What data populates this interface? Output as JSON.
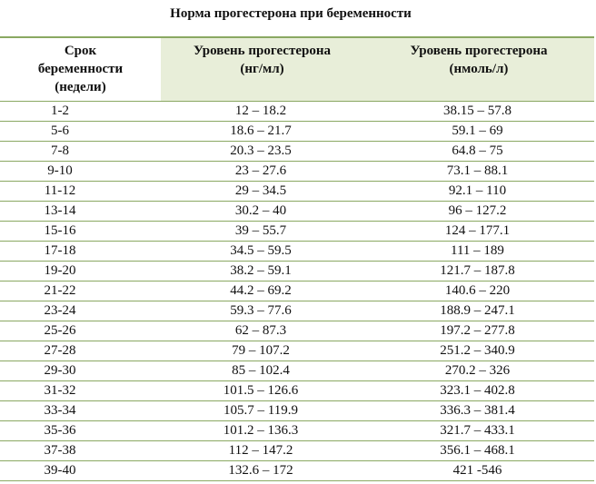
{
  "title": "Норма прогестерона при беременности",
  "headers": {
    "week": [
      "Срок",
      "беременности",
      "(недели)"
    ],
    "ng": [
      "Уровень прогестерона",
      "(нг/мл)"
    ],
    "nmol": [
      "Уровень прогестерона",
      "(нмоль/л)"
    ]
  },
  "rows": [
    {
      "week": "1-2",
      "ng": "12 – 18.2",
      "nmol": "38.15 – 57.8"
    },
    {
      "week": "5-6",
      "ng": "18.6 – 21.7",
      "nmol": "59.1 – 69"
    },
    {
      "week": "7-8",
      "ng": "20.3 – 23.5",
      "nmol": "64.8 – 75"
    },
    {
      "week": "9-10",
      "ng": "23 – 27.6",
      "nmol": "73.1 – 88.1"
    },
    {
      "week": "11-12",
      "ng": "29 – 34.5",
      "nmol": "92.1 – 110"
    },
    {
      "week": "13-14",
      "ng": "30.2 – 40",
      "nmol": "96 – 127.2"
    },
    {
      "week": "15-16",
      "ng": "39 – 55.7",
      "nmol": "124 – 177.1"
    },
    {
      "week": "17-18",
      "ng": "34.5 – 59.5",
      "nmol": "111 – 189"
    },
    {
      "week": "19-20",
      "ng": "38.2 – 59.1",
      "nmol": "121.7 – 187.8"
    },
    {
      "week": "21-22",
      "ng": "44.2 – 69.2",
      "nmol": "140.6 – 220"
    },
    {
      "week": "23-24",
      "ng": "59.3 – 77.6",
      "nmol": "188.9 – 247.1"
    },
    {
      "week": "25-26",
      "ng": "62 – 87.3",
      "nmol": "197.2 – 277.8"
    },
    {
      "week": "27-28",
      "ng": "79 – 107.2",
      "nmol": "251.2 – 340.9"
    },
    {
      "week": "29-30",
      "ng": "85 – 102.4",
      "nmol": "270.2 – 326"
    },
    {
      "week": "31-32",
      "ng": "101.5 – 126.6",
      "nmol": "323.1 – 402.8"
    },
    {
      "week": "33-34",
      "ng": "105.7 – 119.9",
      "nmol": "336.3 – 381.4"
    },
    {
      "week": "35-36",
      "ng": "101.2 – 136.3",
      "nmol": "321.7 – 433.1"
    },
    {
      "week": "37-38",
      "ng": "112 – 147.2",
      "nmol": "356.1 – 468.1"
    },
    {
      "week": "39-40",
      "ng": "132.6 – 172",
      "nmol": "421 -546"
    }
  ]
}
